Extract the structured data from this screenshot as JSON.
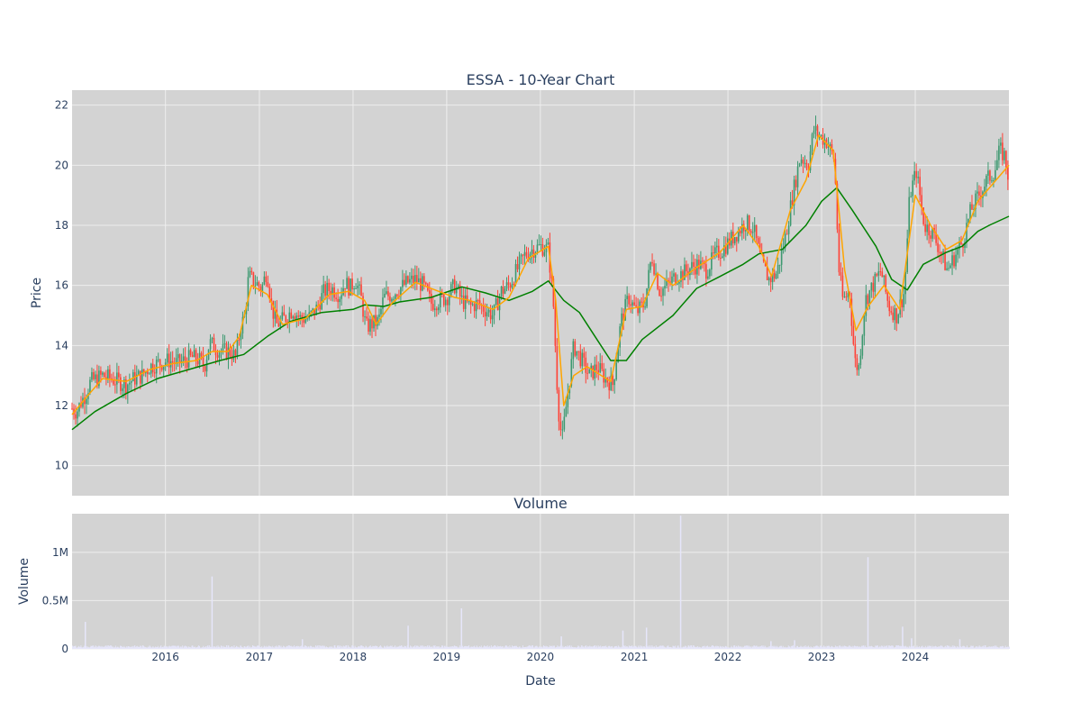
{
  "colors": {
    "plot_bg": "#d3d3d3",
    "grid": "#eeeeee",
    "increasing": "#3d9970",
    "decreasing": "#ff4136",
    "ma_short": "#ffa500",
    "ma_long": "#008000",
    "volume": "#e6e6fa"
  },
  "chart_data": [
    {
      "type": "candlestick",
      "title": "ESSA - 10-Year Chart",
      "xlabel": "",
      "ylabel": "Price",
      "ylim": [
        9,
        22.5
      ],
      "xlim": [
        "2015-01-02",
        "2024-12-31"
      ],
      "yticks": [
        10,
        12,
        14,
        16,
        18,
        20,
        22
      ],
      "grid": true,
      "series_style": {
        "price": "OHLC candles, green up / red down",
        "ma_short": "orange moving average",
        "ma_long": "green moving average"
      },
      "close_points": [
        [
          "2015-01-02",
          11.9
        ],
        [
          "2015-01-20",
          11.8
        ],
        [
          "2015-02-05",
          12.1
        ],
        [
          "2015-02-25",
          12.4
        ],
        [
          "2015-03-15",
          12.8
        ],
        [
          "2015-04-10",
          12.9
        ],
        [
          "2015-05-01",
          13.0
        ],
        [
          "2015-06-01",
          12.9
        ],
        [
          "2015-07-01",
          12.8
        ],
        [
          "2015-08-01",
          12.7
        ],
        [
          "2015-09-01",
          12.9
        ],
        [
          "2015-10-01",
          13.0
        ],
        [
          "2015-11-01",
          13.3
        ],
        [
          "2015-12-01",
          13.4
        ],
        [
          "2016-01-15",
          13.5
        ],
        [
          "2016-02-15",
          13.4
        ],
        [
          "2016-03-15",
          13.5
        ],
        [
          "2016-04-15",
          13.6
        ],
        [
          "2016-05-15",
          13.5
        ],
        [
          "2016-06-01",
          13.3
        ],
        [
          "2016-06-20",
          14.1
        ],
        [
          "2016-07-15",
          13.9
        ],
        [
          "2016-08-15",
          13.8
        ],
        [
          "2016-09-10",
          13.8
        ],
        [
          "2016-10-01",
          13.6
        ],
        [
          "2016-10-20",
          14.6
        ],
        [
          "2016-11-05",
          15.0
        ],
        [
          "2016-11-20",
          16.3
        ],
        [
          "2016-12-15",
          16.1
        ],
        [
          "2017-01-10",
          15.9
        ],
        [
          "2017-01-30",
          16.5
        ],
        [
          "2017-02-20",
          15.2
        ],
        [
          "2017-03-10",
          14.7
        ],
        [
          "2017-04-10",
          14.9
        ],
        [
          "2017-05-10",
          15.2
        ],
        [
          "2017-06-10",
          14.9
        ],
        [
          "2017-07-10",
          14.9
        ],
        [
          "2017-08-10",
          15.2
        ],
        [
          "2017-09-10",
          15.8
        ],
        [
          "2017-10-10",
          15.9
        ],
        [
          "2017-11-10",
          15.7
        ],
        [
          "2017-12-01",
          16.1
        ],
        [
          "2017-12-20",
          15.9
        ],
        [
          "2018-01-10",
          16.2
        ],
        [
          "2018-02-01",
          15.6
        ],
        [
          "2018-02-20",
          14.6
        ],
        [
          "2018-03-10",
          14.7
        ],
        [
          "2018-04-10",
          14.8
        ],
        [
          "2018-05-01",
          15.6
        ],
        [
          "2018-06-01",
          15.7
        ],
        [
          "2018-07-01",
          15.9
        ],
        [
          "2018-08-01",
          16.1
        ],
        [
          "2018-09-01",
          16.2
        ],
        [
          "2018-10-01",
          16.0
        ],
        [
          "2018-11-01",
          15.4
        ],
        [
          "2018-12-01",
          15.5
        ],
        [
          "2019-01-01",
          15.6
        ],
        [
          "2019-02-01",
          16.0
        ],
        [
          "2019-03-01",
          15.5
        ],
        [
          "2019-04-01",
          15.3
        ],
        [
          "2019-05-01",
          15.4
        ],
        [
          "2019-06-01",
          15.2
        ],
        [
          "2019-07-01",
          15.0
        ],
        [
          "2019-08-01",
          15.8
        ],
        [
          "2019-09-01",
          16.0
        ],
        [
          "2019-10-01",
          16.5
        ],
        [
          "2019-11-01",
          17.0
        ],
        [
          "2019-12-01",
          17.2
        ],
        [
          "2020-01-01",
          17.3
        ],
        [
          "2020-02-01",
          17.2
        ],
        [
          "2020-02-20",
          15.5
        ],
        [
          "2020-03-10",
          12.0
        ],
        [
          "2020-03-25",
          10.8
        ],
        [
          "2020-04-15",
          12.3
        ],
        [
          "2020-05-10",
          14.0
        ],
        [
          "2020-06-10",
          13.5
        ],
        [
          "2020-07-10",
          13.0
        ],
        [
          "2020-08-10",
          13.3
        ],
        [
          "2020-09-10",
          12.9
        ],
        [
          "2020-10-10",
          12.7
        ],
        [
          "2020-11-10",
          14.8
        ],
        [
          "2020-12-10",
          15.6
        ],
        [
          "2021-01-10",
          15.1
        ],
        [
          "2021-02-10",
          15.4
        ],
        [
          "2021-03-10",
          17.0
        ],
        [
          "2021-04-10",
          15.8
        ],
        [
          "2021-05-10",
          16.0
        ],
        [
          "2021-06-10",
          16.3
        ],
        [
          "2021-07-10",
          16.4
        ],
        [
          "2021-08-10",
          16.6
        ],
        [
          "2021-09-10",
          16.7
        ],
        [
          "2021-10-10",
          16.5
        ],
        [
          "2021-11-10",
          17.0
        ],
        [
          "2021-12-10",
          17.2
        ],
        [
          "2022-01-10",
          17.5
        ],
        [
          "2022-02-10",
          17.8
        ],
        [
          "2022-03-10",
          18.1
        ],
        [
          "2022-04-10",
          17.9
        ],
        [
          "2022-05-10",
          16.8
        ],
        [
          "2022-06-10",
          16.2
        ],
        [
          "2022-07-10",
          16.4
        ],
        [
          "2022-08-10",
          17.5
        ],
        [
          "2022-09-10",
          19.0
        ],
        [
          "2022-10-10",
          20.3
        ],
        [
          "2022-11-10",
          20.0
        ],
        [
          "2022-12-01",
          21.2
        ],
        [
          "2022-12-20",
          21.0
        ],
        [
          "2023-01-20",
          20.8
        ],
        [
          "2023-02-20",
          20.2
        ],
        [
          "2023-03-10",
          16.5
        ],
        [
          "2023-03-25",
          15.5
        ],
        [
          "2023-04-20",
          15.8
        ],
        [
          "2023-05-10",
          13.5
        ],
        [
          "2023-05-25",
          13.2
        ],
        [
          "2023-06-20",
          15.5
        ],
        [
          "2023-07-20",
          16.0
        ],
        [
          "2023-08-20",
          16.5
        ],
        [
          "2023-09-20",
          15.3
        ],
        [
          "2023-10-20",
          15.0
        ],
        [
          "2023-11-20",
          15.8
        ],
        [
          "2023-12-10",
          19.0
        ],
        [
          "2024-01-05",
          19.8
        ],
        [
          "2024-02-05",
          18.0
        ],
        [
          "2024-03-05",
          17.8
        ],
        [
          "2024-04-05",
          17.2
        ],
        [
          "2024-05-05",
          16.5
        ],
        [
          "2024-06-05",
          17.0
        ],
        [
          "2024-07-05",
          17.5
        ],
        [
          "2024-08-05",
          18.5
        ],
        [
          "2024-09-05",
          19.0
        ],
        [
          "2024-10-05",
          19.5
        ],
        [
          "2024-11-05",
          19.8
        ],
        [
          "2024-11-25",
          20.5
        ],
        [
          "2024-12-15",
          20.3
        ],
        [
          "2024-12-31",
          19.5
        ]
      ],
      "ma_short_points": [
        [
          "2015-01-02",
          11.7
        ],
        [
          "2015-03-01",
          12.3
        ],
        [
          "2015-05-01",
          12.9
        ],
        [
          "2015-08-01",
          12.8
        ],
        [
          "2015-11-01",
          13.2
        ],
        [
          "2016-02-01",
          13.4
        ],
        [
          "2016-05-01",
          13.5
        ],
        [
          "2016-07-01",
          13.8
        ],
        [
          "2016-09-01",
          13.8
        ],
        [
          "2016-10-15",
          14.3
        ],
        [
          "2016-12-01",
          16.0
        ],
        [
          "2017-02-01",
          15.7
        ],
        [
          "2017-04-01",
          14.7
        ],
        [
          "2017-07-01",
          14.9
        ],
        [
          "2017-10-01",
          15.7
        ],
        [
          "2017-12-15",
          15.8
        ],
        [
          "2018-02-15",
          15.5
        ],
        [
          "2018-04-01",
          14.7
        ],
        [
          "2018-06-01",
          15.4
        ],
        [
          "2018-09-01",
          16.1
        ],
        [
          "2018-12-01",
          15.8
        ],
        [
          "2019-02-01",
          15.6
        ],
        [
          "2019-04-01",
          15.5
        ],
        [
          "2019-07-01",
          15.2
        ],
        [
          "2019-09-01",
          15.6
        ],
        [
          "2019-11-15",
          16.9
        ],
        [
          "2020-02-01",
          17.3
        ],
        [
          "2020-03-01",
          15.5
        ],
        [
          "2020-04-01",
          12.0
        ],
        [
          "2020-05-10",
          13.0
        ],
        [
          "2020-07-01",
          13.3
        ],
        [
          "2020-10-01",
          12.8
        ],
        [
          "2020-12-01",
          15.2
        ],
        [
          "2021-02-01",
          15.3
        ],
        [
          "2021-04-01",
          16.4
        ],
        [
          "2021-06-01",
          16.0
        ],
        [
          "2021-09-01",
          16.6
        ],
        [
          "2021-12-01",
          17.1
        ],
        [
          "2022-03-01",
          18.0
        ],
        [
          "2022-05-01",
          17.3
        ],
        [
          "2022-06-20",
          16.3
        ],
        [
          "2022-09-01",
          18.5
        ],
        [
          "2022-11-01",
          19.5
        ],
        [
          "2022-12-20",
          21.0
        ],
        [
          "2023-02-15",
          20.5
        ],
        [
          "2023-04-01",
          16.5
        ],
        [
          "2023-05-15",
          14.5
        ],
        [
          "2023-07-01",
          15.3
        ],
        [
          "2023-09-01",
          16.0
        ],
        [
          "2023-11-01",
          15.2
        ],
        [
          "2024-01-01",
          19.0
        ],
        [
          "2024-03-01",
          18.0
        ],
        [
          "2024-05-01",
          17.2
        ],
        [
          "2024-07-01",
          17.5
        ],
        [
          "2024-09-01",
          18.8
        ],
        [
          "2024-12-31",
          20.0
        ]
      ],
      "ma_long_points": [
        [
          "2015-01-02",
          11.2
        ],
        [
          "2015-04-01",
          11.8
        ],
        [
          "2015-08-01",
          12.4
        ],
        [
          "2015-12-01",
          12.9
        ],
        [
          "2016-04-01",
          13.2
        ],
        [
          "2016-08-01",
          13.5
        ],
        [
          "2016-11-01",
          13.7
        ],
        [
          "2017-02-01",
          14.3
        ],
        [
          "2017-05-01",
          14.8
        ],
        [
          "2017-09-01",
          15.1
        ],
        [
          "2018-01-01",
          15.2
        ],
        [
          "2018-02-15",
          15.35
        ],
        [
          "2018-05-01",
          15.3
        ],
        [
          "2018-07-01",
          15.45
        ],
        [
          "2018-11-01",
          15.6
        ],
        [
          "2019-03-01",
          15.95
        ],
        [
          "2019-06-01",
          15.75
        ],
        [
          "2019-09-01",
          15.5
        ],
        [
          "2019-12-01",
          15.8
        ],
        [
          "2020-02-01",
          16.15
        ],
        [
          "2020-04-01",
          15.5
        ],
        [
          "2020-06-01",
          15.1
        ],
        [
          "2020-08-01",
          14.3
        ],
        [
          "2020-10-01",
          13.5
        ],
        [
          "2020-12-01",
          13.5
        ],
        [
          "2021-02-01",
          14.2
        ],
        [
          "2021-06-01",
          15.0
        ],
        [
          "2021-09-01",
          15.9
        ],
        [
          "2021-12-01",
          16.3
        ],
        [
          "2022-03-01",
          16.7
        ],
        [
          "2022-05-01",
          17.05
        ],
        [
          "2022-08-01",
          17.2
        ],
        [
          "2022-11-01",
          18.0
        ],
        [
          "2023-01-01",
          18.8
        ],
        [
          "2023-03-01",
          19.25
        ],
        [
          "2023-05-01",
          18.5
        ],
        [
          "2023-08-01",
          17.3
        ],
        [
          "2023-10-01",
          16.2
        ],
        [
          "2023-12-01",
          15.85
        ],
        [
          "2024-02-01",
          16.7
        ],
        [
          "2024-05-01",
          17.1
        ],
        [
          "2024-07-01",
          17.3
        ],
        [
          "2024-09-01",
          17.8
        ],
        [
          "2024-10-15",
          18.0
        ],
        [
          "2024-12-31",
          18.3
        ]
      ]
    },
    {
      "type": "bar",
      "title": "Volume",
      "xlabel": "Date",
      "ylabel": "Volume",
      "ylim": [
        0,
        1400000
      ],
      "yticks": [
        0,
        500000,
        1000000
      ],
      "ytick_labels": [
        "0",
        "0.5M",
        "1M"
      ],
      "xticks": [
        "2016-01-01",
        "2017-01-01",
        "2018-01-01",
        "2019-01-01",
        "2020-01-01",
        "2021-01-01",
        "2022-01-01",
        "2023-01-01",
        "2024-01-01"
      ],
      "xtick_labels": [
        "2016",
        "2017",
        "2018",
        "2019",
        "2020",
        "2021",
        "2022",
        "2023",
        "2024"
      ],
      "baseline": 25000,
      "spikes": [
        [
          "2015-02-20",
          280000
        ],
        [
          "2016-06-28",
          750000
        ],
        [
          "2017-06-15",
          100000
        ],
        [
          "2018-08-01",
          240000
        ],
        [
          "2019-02-25",
          420000
        ],
        [
          "2020-03-20",
          130000
        ],
        [
          "2020-11-15",
          190000
        ],
        [
          "2021-02-15",
          220000
        ],
        [
          "2021-06-28",
          1380000
        ],
        [
          "2022-06-15",
          80000
        ],
        [
          "2022-09-15",
          90000
        ],
        [
          "2023-06-28",
          950000
        ],
        [
          "2023-11-10",
          230000
        ],
        [
          "2023-12-15",
          110000
        ],
        [
          "2024-06-20",
          100000
        ]
      ]
    }
  ]
}
